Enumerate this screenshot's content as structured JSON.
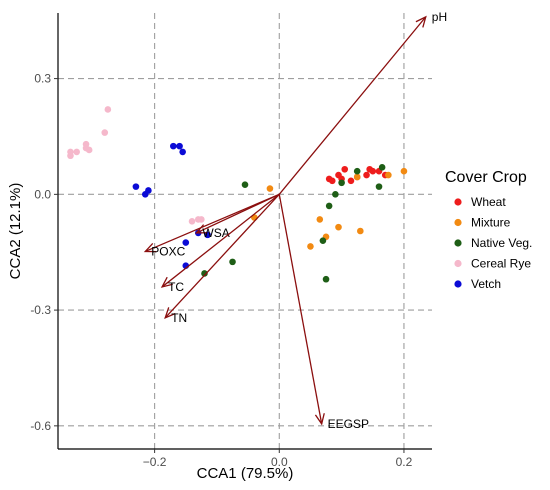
{
  "chart_data": {
    "type": "scatter",
    "title": "",
    "xlabel": "CCA1 (79.5%)",
    "ylabel": "CCA2 (12.1%)",
    "xlim": [
      -0.355,
      0.245
    ],
    "ylim": [
      -0.66,
      0.47
    ],
    "xticks": [
      -0.2,
      0.0,
      0.2
    ],
    "xtick_labels": [
      "−0.2",
      "0.0",
      "0.2"
    ],
    "yticks": [
      0.3,
      0.0,
      -0.3,
      -0.6
    ],
    "ytick_labels": [
      "0.3",
      "0.0",
      "-0.3",
      "-0.6"
    ],
    "grid": "dashed at ticks",
    "legend": {
      "title": "Cover Crop",
      "position": "right"
    },
    "series": [
      {
        "name": "Wheat",
        "color": "#ee1c1c",
        "points": [
          [
            0.08,
            0.04
          ],
          [
            0.085,
            0.035
          ],
          [
            0.095,
            0.05
          ],
          [
            0.1,
            0.04
          ],
          [
            0.105,
            0.065
          ],
          [
            0.115,
            0.035
          ],
          [
            0.125,
            0.045
          ],
          [
            0.14,
            0.05
          ],
          [
            0.145,
            0.065
          ],
          [
            0.15,
            0.06
          ],
          [
            0.16,
            0.06
          ],
          [
            0.17,
            0.05
          ]
        ]
      },
      {
        "name": "Mixture",
        "color": "#f28a12",
        "points": [
          [
            -0.015,
            0.015
          ],
          [
            -0.04,
            -0.06
          ],
          [
            0.05,
            -0.135
          ],
          [
            0.065,
            -0.065
          ],
          [
            0.075,
            -0.11
          ],
          [
            0.095,
            -0.085
          ],
          [
            0.13,
            -0.095
          ],
          [
            0.175,
            0.05
          ],
          [
            0.2,
            0.06
          ],
          [
            0.125,
            0.045
          ]
        ]
      },
      {
        "name": "Native Veg.",
        "color": "#1e5e16",
        "points": [
          [
            -0.055,
            0.025
          ],
          [
            -0.075,
            -0.175
          ],
          [
            -0.12,
            -0.205
          ],
          [
            0.075,
            -0.22
          ],
          [
            0.08,
            -0.03
          ],
          [
            0.09,
            0.0
          ],
          [
            0.1,
            0.03
          ],
          [
            0.125,
            0.06
          ],
          [
            0.16,
            0.02
          ],
          [
            0.165,
            0.07
          ],
          [
            0.07,
            -0.12
          ]
        ]
      },
      {
        "name": "Cereal Rye",
        "color": "#f5b8cb",
        "points": [
          [
            -0.335,
            0.11
          ],
          [
            -0.335,
            0.1
          ],
          [
            -0.325,
            0.11
          ],
          [
            -0.31,
            0.13
          ],
          [
            -0.31,
            0.12
          ],
          [
            -0.305,
            0.115
          ],
          [
            -0.275,
            0.22
          ],
          [
            -0.28,
            0.16
          ],
          [
            -0.14,
            -0.07
          ],
          [
            -0.13,
            -0.065
          ],
          [
            -0.125,
            -0.065
          ]
        ]
      },
      {
        "name": "Vetch",
        "color": "#0b0bd6",
        "points": [
          [
            -0.23,
            0.02
          ],
          [
            -0.215,
            0.0
          ],
          [
            -0.21,
            0.01
          ],
          [
            -0.17,
            0.125
          ],
          [
            -0.16,
            0.125
          ],
          [
            -0.155,
            0.11
          ],
          [
            -0.15,
            -0.125
          ],
          [
            -0.15,
            -0.185
          ],
          [
            -0.13,
            -0.1
          ],
          [
            -0.115,
            -0.105
          ]
        ]
      }
    ],
    "vectors": {
      "color": "#8b0f0f",
      "items": [
        {
          "name": "pH",
          "x": 0.235,
          "y": 0.46
        },
        {
          "name": "POXC",
          "x": -0.215,
          "y": -0.148
        },
        {
          "name": "WSA",
          "x": -0.133,
          "y": -0.1
        },
        {
          "name": "TC",
          "x": -0.188,
          "y": -0.24
        },
        {
          "name": "TN",
          "x": -0.183,
          "y": -0.32
        },
        {
          "name": "EEGSP",
          "x": 0.068,
          "y": -0.595
        }
      ]
    }
  }
}
